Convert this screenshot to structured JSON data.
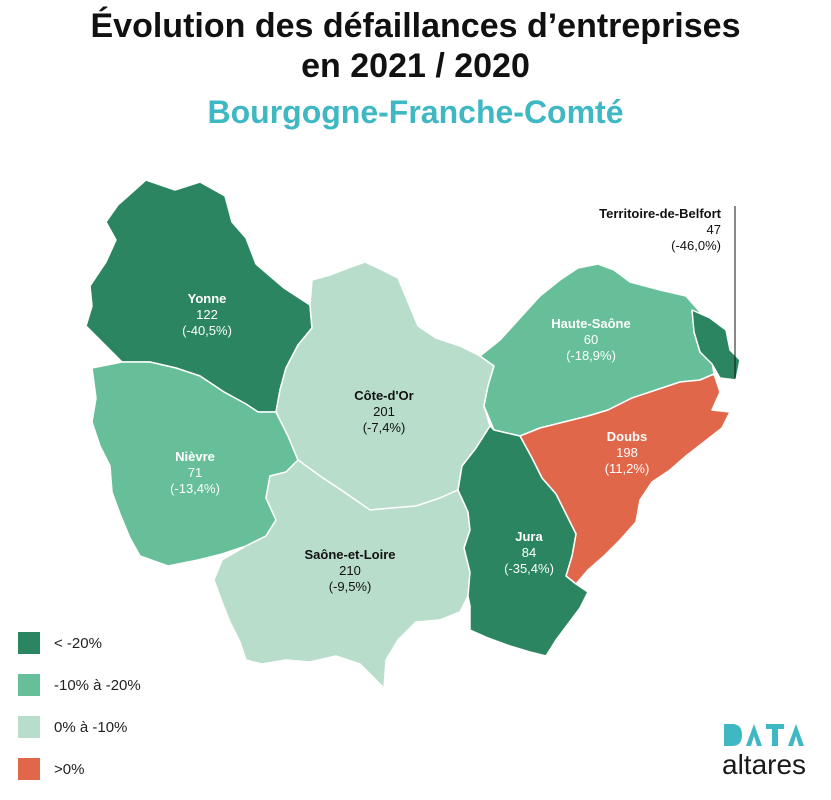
{
  "title_line1": "Évolution des défaillances d’entreprises",
  "title_line2": "en 2021 / 2020",
  "subtitle": "Bourgogne-Franche-Comté",
  "colors": {
    "dark_green": "#2b8560",
    "mid_green": "#66bf98",
    "light_green": "#b8ddcb",
    "orange": "#e0674a",
    "subtitle": "#3fb8c3"
  },
  "departments": [
    {
      "name": "Yonne",
      "count": "122",
      "change": "(-40,5%)",
      "category": "< -20%"
    },
    {
      "name": "Nièvre",
      "count": "71",
      "change": "(-13,4%)",
      "category": "-10% à -20%"
    },
    {
      "name": "Côte-d'Or",
      "count": "201",
      "change": "(-7,4%)",
      "category": "0% à -10%"
    },
    {
      "name": "Saône-et-Loire",
      "count": "210",
      "change": "(-9,5%)",
      "category": "0% à -10%"
    },
    {
      "name": "Haute-Saône",
      "count": "60",
      "change": "(-18,9%)",
      "category": "-10% à -20%"
    },
    {
      "name": "Doubs",
      "count": "198",
      "change": "(11,2%)",
      "category": ">0%"
    },
    {
      "name": "Jura",
      "count": "84",
      "change": "(-35,4%)",
      "category": "< -20%"
    },
    {
      "name": "Territoire-de-Belfort",
      "count": "47",
      "change": "(-46,0%)",
      "category": "< -20%"
    }
  ],
  "legend": [
    {
      "label": "< -20%",
      "color": "#2b8560"
    },
    {
      "label": "-10% à -20%",
      "color": "#66bf98"
    },
    {
      "label": "0% à -10%",
      "color": "#b8ddcb"
    },
    {
      "label": ">0%",
      "color": "#e0674a"
    }
  ],
  "logo": {
    "word": "altares"
  }
}
